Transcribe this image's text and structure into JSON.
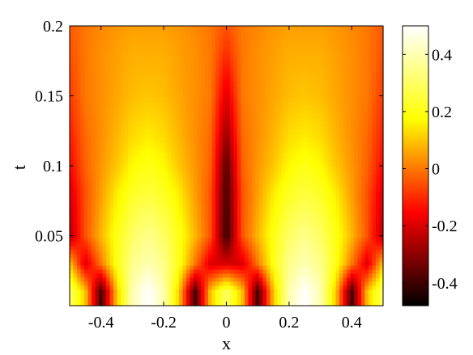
{
  "chart_data": {
    "type": "heatmap",
    "title": "",
    "xlabel": "x",
    "ylabel": "t",
    "xlim": [
      -0.5,
      0.5
    ],
    "ylim": [
      0,
      0.2
    ],
    "xticks": [
      -0.4,
      -0.2,
      0,
      0.2,
      0.4
    ],
    "xtick_labels": [
      "-0.4",
      "-0.2",
      "0",
      "0.2",
      "0.4"
    ],
    "yticks": [
      0.05,
      0.1,
      0.15,
      0.2
    ],
    "ytick_labels": [
      "0.05",
      "0.1",
      "0.15",
      "0.2"
    ],
    "colorbar": {
      "range": [
        -0.48,
        0.5
      ],
      "ticks": [
        -0.4,
        -0.2,
        0,
        0.2,
        0.4
      ],
      "tick_labels": [
        "-0.4",
        "-0.2",
        "0",
        "0.2",
        "0.4"
      ],
      "colormap": "hot",
      "colormap_stops": [
        "#000000",
        "#ff0000",
        "#ffff00",
        "#ffffff"
      ]
    },
    "x": [
      -0.5,
      -0.45,
      -0.4,
      -0.35,
      -0.3,
      -0.25,
      -0.2,
      -0.15,
      -0.1,
      -0.05,
      0,
      0.05,
      0.1,
      0.15,
      0.2,
      0.25,
      0.3,
      0.35,
      0.4,
      0.45,
      0.5
    ],
    "y": [
      0.01,
      0.03,
      0.05,
      0.08,
      0.1,
      0.12,
      0.15,
      0.18,
      0.2
    ],
    "z": [
      [
        0.3,
        0.1,
        -0.4,
        0.1,
        0.4,
        0.5,
        0.4,
        0.1,
        -0.4,
        0.1,
        0.3,
        0.1,
        -0.4,
        0.1,
        0.4,
        0.5,
        0.4,
        0.1,
        -0.4,
        0.1,
        0.3
      ],
      [
        0.1,
        -0.2,
        0.0,
        0.2,
        0.35,
        0.4,
        0.35,
        0.2,
        0.0,
        -0.2,
        -0.2,
        -0.2,
        0.0,
        0.2,
        0.35,
        0.4,
        0.35,
        0.2,
        0.0,
        -0.2,
        0.1
      ],
      [
        -0.25,
        -0.05,
        0.08,
        0.2,
        0.3,
        0.35,
        0.3,
        0.2,
        0.08,
        -0.05,
        -0.42,
        -0.05,
        0.08,
        0.2,
        0.3,
        0.35,
        0.3,
        0.2,
        0.08,
        -0.05,
        -0.25
      ],
      [
        -0.2,
        -0.05,
        0.05,
        0.15,
        0.22,
        0.25,
        0.22,
        0.15,
        0.05,
        -0.05,
        -0.4,
        -0.05,
        0.05,
        0.15,
        0.22,
        0.25,
        0.22,
        0.15,
        0.05,
        -0.05,
        -0.2
      ],
      [
        -0.15,
        -0.03,
        0.04,
        0.1,
        0.17,
        0.2,
        0.17,
        0.1,
        0.04,
        -0.03,
        -0.38,
        -0.03,
        0.04,
        0.1,
        0.17,
        0.2,
        0.17,
        0.1,
        0.04,
        -0.03,
        -0.15
      ],
      [
        -0.12,
        -0.02,
        0.03,
        0.08,
        0.13,
        0.15,
        0.13,
        0.08,
        0.03,
        -0.02,
        -0.3,
        -0.02,
        0.03,
        0.08,
        0.13,
        0.15,
        0.13,
        0.08,
        0.03,
        -0.02,
        -0.12
      ],
      [
        -0.08,
        0.0,
        0.03,
        0.06,
        0.09,
        0.1,
        0.09,
        0.06,
        0.03,
        0.0,
        -0.2,
        0.0,
        0.03,
        0.06,
        0.09,
        0.1,
        0.09,
        0.06,
        0.03,
        0.0,
        -0.08
      ],
      [
        -0.05,
        0.0,
        0.03,
        0.05,
        0.07,
        0.07,
        0.07,
        0.05,
        0.03,
        0.0,
        -0.1,
        0.0,
        0.03,
        0.05,
        0.07,
        0.07,
        0.07,
        0.05,
        0.03,
        0.0,
        -0.05
      ],
      [
        -0.04,
        0.0,
        0.02,
        0.04,
        0.05,
        0.05,
        0.05,
        0.04,
        0.02,
        0.0,
        -0.05,
        0.0,
        0.02,
        0.04,
        0.05,
        0.05,
        0.05,
        0.04,
        0.02,
        0.0,
        -0.04
      ]
    ]
  }
}
